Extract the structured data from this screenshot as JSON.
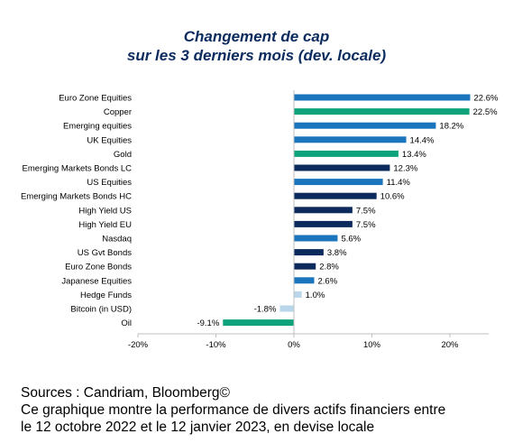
{
  "title_line1": "Changement de cap",
  "title_line2": "sur les 3 derniers mois (dev. locale)",
  "footer": {
    "source": "Sources : Candriam, Bloomberg©",
    "caption_line1": "Ce graphique montre la performance de divers actifs financiers entre",
    "caption_line2": "le 12 octobre 2022 et le 12 janvier 2023, en devise locale"
  },
  "colors": {
    "blue": "#1a75bc",
    "green": "#0ea37a",
    "navy": "#0d2a5c",
    "light": "#b9d6ea"
  },
  "chart_data": {
    "type": "bar",
    "orientation": "horizontal",
    "title": "Changement de cap sur les 3 derniers mois (dev. locale)",
    "xlim": [
      -20,
      25
    ],
    "xticks": [
      -20,
      -10,
      0,
      10,
      20
    ],
    "xtick_labels": [
      "-20%",
      "-10%",
      "0%",
      "10%",
      "20%"
    ],
    "grid": false,
    "categories": [
      "Euro Zone Equities",
      "Copper",
      "Emerging equities",
      "UK Equities",
      "Gold",
      "Emerging Markets Bonds LC",
      "US Equities",
      "Emerging Markets Bonds HC",
      "High Yield US",
      "High Yield EU",
      "Nasdaq",
      "US Gvt Bonds",
      "Euro Zone Bonds",
      "Japanese Equities",
      "Hedge Funds",
      "Bitcoin (in USD)",
      "Oil"
    ],
    "values": [
      22.6,
      22.5,
      18.2,
      14.4,
      13.4,
      12.3,
      11.4,
      10.6,
      7.5,
      7.5,
      5.6,
      3.8,
      2.8,
      2.6,
      1.0,
      -1.8,
      -9.1
    ],
    "value_labels": [
      "22.6%",
      "22.5%",
      "18.2%",
      "14.4%",
      "13.4%",
      "12.3%",
      "11.4%",
      "10.6%",
      "7.5%",
      "7.5%",
      "5.6%",
      "3.8%",
      "2.8%",
      "2.6%",
      "1.0%",
      "-1.8%",
      "-9.1%"
    ],
    "bar_colors": [
      "blue",
      "green",
      "blue",
      "blue",
      "green",
      "navy",
      "blue",
      "navy",
      "navy",
      "navy",
      "blue",
      "navy",
      "navy",
      "blue",
      "light",
      "light",
      "green"
    ]
  }
}
